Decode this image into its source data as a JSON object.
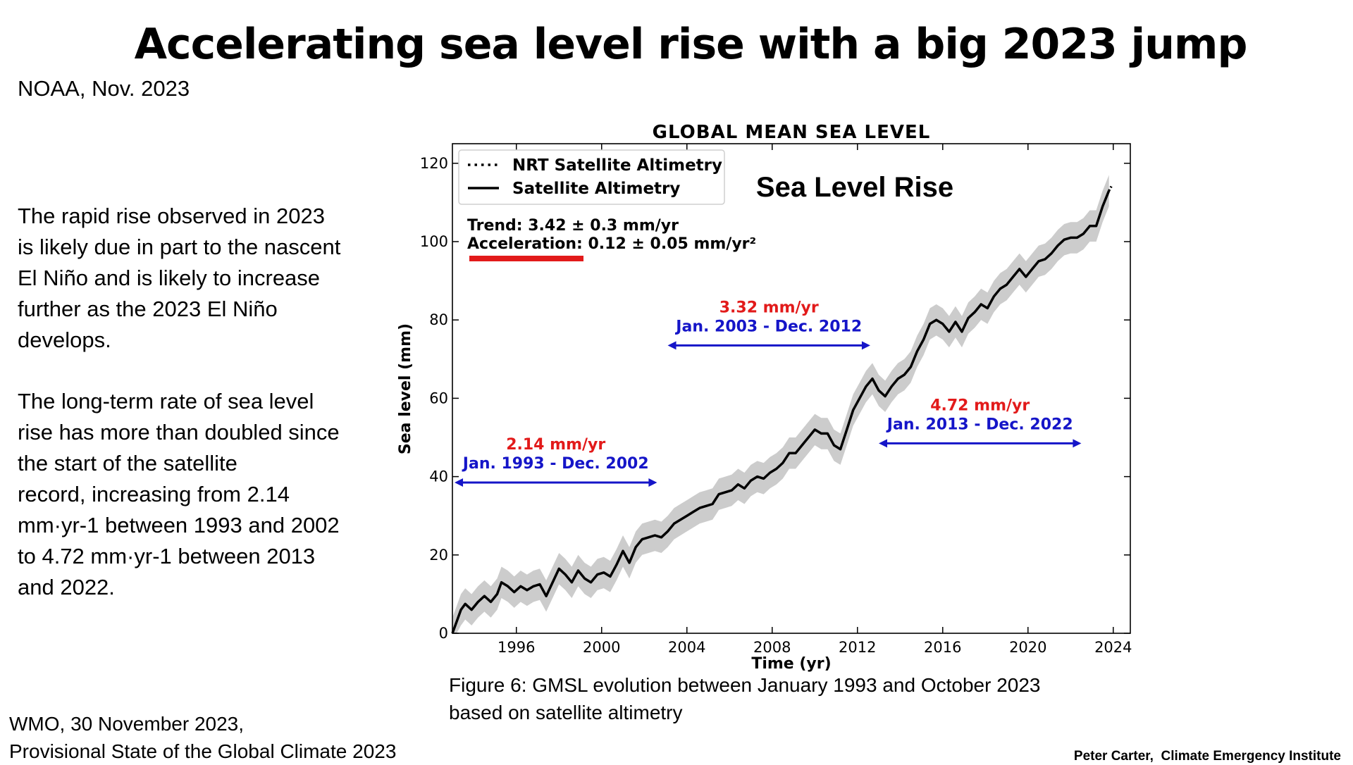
{
  "slide": {
    "title": "Accelerating sea level rise with a big 2023 jump",
    "source_top": "NOAA, Nov. 2023",
    "paragraph1": "The rapid rise observed in 2023\nis likely due in part to the nascent\nEl Niño and is likely to increase\nfurther as the 2023 El Niño\ndevelops.",
    "paragraph2": "The long-term rate of sea level\nrise has more than doubled since\nthe start of the satellite\nrecord, increasing from 2.14\nmm·yr-1 between 1993 and 2002\nto 4.72 mm·yr-1 between 2013\nand 2022.",
    "source_bottom": "WMO, 30 November 2023,\nProvisional State of the Global Climate 2023",
    "figure_caption": "Figure 6: GMSL evolution between January 1993 and October 2023\nbased on satellite altimetry",
    "credit": "Peter Carter,  Climate Emergency Institute"
  },
  "chart_data": {
    "type": "line",
    "title": "GLOBAL MEAN SEA LEVEL",
    "xlabel": "Time (yr)",
    "ylabel": "Sea level (mm)",
    "xlim": [
      1993,
      2024.8
    ],
    "ylim": [
      0,
      125
    ],
    "x_ticks": [
      1996,
      2000,
      2004,
      2008,
      2012,
      2016,
      2020,
      2024
    ],
    "y_ticks": [
      0,
      20,
      40,
      60,
      80,
      100,
      120
    ],
    "legend": {
      "placement": "top-left",
      "entries": [
        {
          "label": "NRT Satellite Altimetry",
          "style": "dotted"
        },
        {
          "label": "Satellite Altimetry",
          "style": "solid"
        }
      ]
    },
    "overlay_label": "Sea Level Rise",
    "stats": {
      "trend": "Trend: 3.42 ± 0.3 mm/yr",
      "acceleration": "Acceleration: 0.12 ± 0.05 mm/yr²"
    },
    "highlight_color": "#e21a1a",
    "periods": [
      {
        "rate": "2.14 mm/yr",
        "range": "Jan. 1993 - Dec. 2002",
        "start": 1993.1,
        "end": 2002.6,
        "level": 38.5
      },
      {
        "rate": "3.32 mm/yr",
        "range": "Jan. 2003 - Dec. 2012",
        "start": 2003.1,
        "end": 2012.6,
        "level": 73.5
      },
      {
        "rate": "4.72 mm/yr",
        "range": "Jan. 2013 - Dec. 2022",
        "start": 2013.0,
        "end": 2022.5,
        "level": 48.5
      }
    ],
    "colors": {
      "rate": "#e21a1a",
      "range": "#1515c8",
      "line": "#000000",
      "band": "#cccccc"
    },
    "band_halfwidth": 4,
    "series": [
      {
        "name": "Satellite Altimetry",
        "points": [
          [
            1993.0,
            0
          ],
          [
            1993.2,
            3
          ],
          [
            1993.4,
            6
          ],
          [
            1993.6,
            7.5
          ],
          [
            1993.9,
            6
          ],
          [
            1994.2,
            8
          ],
          [
            1994.5,
            9.5
          ],
          [
            1994.8,
            8
          ],
          [
            1995.1,
            10
          ],
          [
            1995.3,
            13
          ],
          [
            1995.6,
            12
          ],
          [
            1995.9,
            10.5
          ],
          [
            1996.2,
            12
          ],
          [
            1996.5,
            11
          ],
          [
            1996.8,
            12
          ],
          [
            1997.1,
            12.5
          ],
          [
            1997.4,
            9.5
          ],
          [
            1997.7,
            13
          ],
          [
            1998.0,
            16.5
          ],
          [
            1998.3,
            15
          ],
          [
            1998.6,
            13
          ],
          [
            1998.9,
            16
          ],
          [
            1999.2,
            14
          ],
          [
            1999.5,
            13
          ],
          [
            1999.8,
            15
          ],
          [
            2000.1,
            15.5
          ],
          [
            2000.4,
            14.5
          ],
          [
            2000.7,
            17.5
          ],
          [
            2001.0,
            21
          ],
          [
            2001.3,
            18
          ],
          [
            2001.6,
            22
          ],
          [
            2001.9,
            24
          ],
          [
            2002.2,
            24.5
          ],
          [
            2002.5,
            25
          ],
          [
            2002.8,
            24.5
          ],
          [
            2003.1,
            26
          ],
          [
            2003.4,
            28
          ],
          [
            2003.7,
            29
          ],
          [
            2004.0,
            30
          ],
          [
            2004.3,
            31
          ],
          [
            2004.6,
            32
          ],
          [
            2004.9,
            32.5
          ],
          [
            2005.2,
            33
          ],
          [
            2005.5,
            35.5
          ],
          [
            2005.8,
            36
          ],
          [
            2006.1,
            36.5
          ],
          [
            2006.4,
            38
          ],
          [
            2006.7,
            37
          ],
          [
            2007.0,
            39
          ],
          [
            2007.3,
            40
          ],
          [
            2007.6,
            39.5
          ],
          [
            2007.9,
            41
          ],
          [
            2008.2,
            42
          ],
          [
            2008.5,
            43.5
          ],
          [
            2008.8,
            46
          ],
          [
            2009.1,
            46
          ],
          [
            2009.4,
            48
          ],
          [
            2009.7,
            50
          ],
          [
            2010.0,
            52
          ],
          [
            2010.3,
            51
          ],
          [
            2010.6,
            51
          ],
          [
            2010.9,
            48
          ],
          [
            2011.2,
            47
          ],
          [
            2011.5,
            52
          ],
          [
            2011.8,
            57
          ],
          [
            2012.1,
            60
          ],
          [
            2012.4,
            63
          ],
          [
            2012.7,
            65
          ],
          [
            2013.0,
            62
          ],
          [
            2013.3,
            60.5
          ],
          [
            2013.6,
            63
          ],
          [
            2013.9,
            65
          ],
          [
            2014.2,
            66
          ],
          [
            2014.5,
            68
          ],
          [
            2014.8,
            72
          ],
          [
            2015.1,
            75
          ],
          [
            2015.4,
            79
          ],
          [
            2015.7,
            80
          ],
          [
            2016.0,
            79
          ],
          [
            2016.3,
            77
          ],
          [
            2016.6,
            79.5
          ],
          [
            2016.9,
            77
          ],
          [
            2017.2,
            80.5
          ],
          [
            2017.5,
            82
          ],
          [
            2017.8,
            84
          ],
          [
            2018.1,
            83
          ],
          [
            2018.4,
            86
          ],
          [
            2018.7,
            88
          ],
          [
            2019.0,
            89
          ],
          [
            2019.3,
            91
          ],
          [
            2019.6,
            93
          ],
          [
            2019.9,
            91
          ],
          [
            2020.2,
            93
          ],
          [
            2020.5,
            95
          ],
          [
            2020.8,
            95.5
          ],
          [
            2021.1,
            97
          ],
          [
            2021.4,
            99
          ],
          [
            2021.7,
            100.5
          ],
          [
            2022.0,
            101
          ],
          [
            2022.3,
            101
          ],
          [
            2022.6,
            102
          ],
          [
            2022.9,
            104
          ],
          [
            2023.2,
            104
          ],
          [
            2023.5,
            109
          ],
          [
            2023.8,
            113
          ]
        ]
      }
    ]
  }
}
